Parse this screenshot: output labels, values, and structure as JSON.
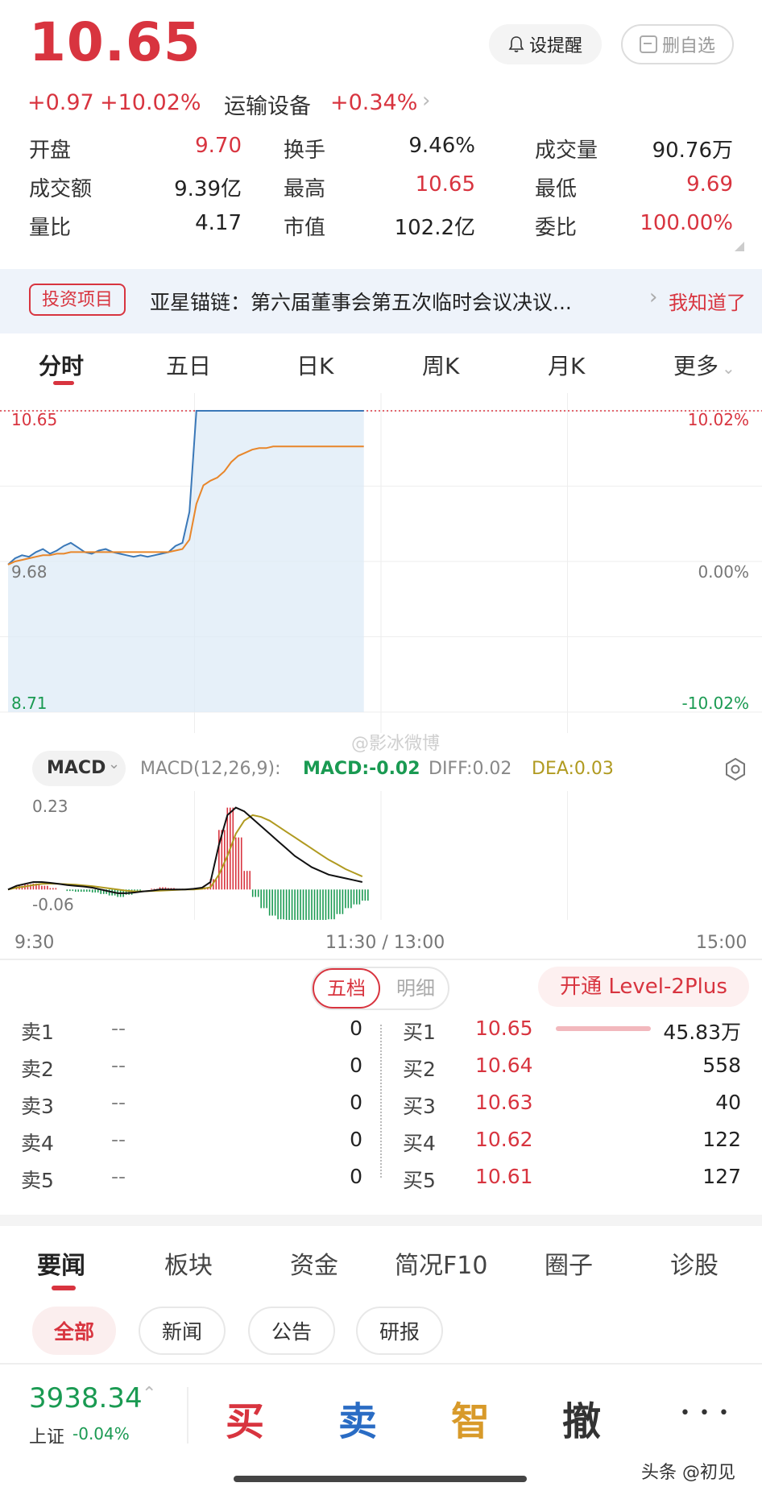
{
  "header": {
    "price": "10.65",
    "change": "+0.97",
    "change_pct": "+10.02%",
    "sector_name": "运输设备",
    "sector_pct": "+0.34%",
    "alert_label": "设提醒",
    "remove_label": "删自选"
  },
  "stats": [
    {
      "label": "开盘",
      "value": "9.70",
      "color": "red"
    },
    {
      "label": "换手",
      "value": "9.46%",
      "color": "black"
    },
    {
      "label": "成交量",
      "value": "90.76万",
      "color": "black"
    },
    {
      "label": "成交额",
      "value": "9.39亿",
      "color": "black"
    },
    {
      "label": "最高",
      "value": "10.65",
      "color": "red"
    },
    {
      "label": "最低",
      "value": "9.69",
      "color": "red"
    },
    {
      "label": "量比",
      "value": "4.17",
      "color": "black"
    },
    {
      "label": "市值",
      "value": "102.2亿",
      "color": "black"
    },
    {
      "label": "委比",
      "value": "100.00%",
      "color": "red"
    }
  ],
  "banner": {
    "tag": "投资项目",
    "text": "亚星锚链：第六届董事会第五次临时会议决议...",
    "action": "我知道了"
  },
  "chart_tabs": [
    "分时",
    "五日",
    "日K",
    "周K",
    "月K",
    "更多"
  ],
  "chart_data": [
    {
      "type": "line",
      "y_left_ticks": [
        "10.65",
        "9.68",
        "8.71"
      ],
      "y_right_ticks": [
        "10.02%",
        "0.00%",
        "-10.02%"
      ],
      "x_ticks": [
        "9:30",
        "11:30 / 13:00",
        "15:00"
      ],
      "ylim": [
        8.71,
        10.65
      ],
      "series": [
        {
          "values": [
            9.66,
            9.7,
            9.72,
            9.71,
            9.74,
            9.76,
            9.73,
            9.75,
            9.78,
            9.8,
            9.77,
            9.74,
            9.73,
            9.75,
            9.76,
            9.74,
            9.73,
            9.72,
            9.71,
            9.72,
            9.71,
            9.72,
            9.73,
            9.74,
            9.78,
            9.8,
            10.0,
            10.65,
            10.65,
            10.65,
            10.65,
            10.65,
            10.65,
            10.65,
            10.65,
            10.65,
            10.65,
            10.65,
            10.65,
            10.65,
            10.65,
            10.65,
            10.65,
            10.65,
            10.65,
            10.65,
            10.65,
            10.65,
            10.65,
            10.65,
            10.65,
            10.65
          ]
        },
        {
          "values": [
            9.66,
            9.68,
            9.69,
            9.7,
            9.71,
            9.72,
            9.72,
            9.73,
            9.73,
            9.74,
            9.74,
            9.74,
            9.74,
            9.74,
            9.74,
            9.74,
            9.74,
            9.74,
            9.74,
            9.74,
            9.74,
            9.74,
            9.74,
            9.74,
            9.75,
            9.76,
            9.82,
            10.05,
            10.17,
            10.2,
            10.22,
            10.26,
            10.32,
            10.36,
            10.38,
            10.4,
            10.41,
            10.41,
            10.42,
            10.42,
            10.42,
            10.42,
            10.42,
            10.42,
            10.42,
            10.42,
            10.42,
            10.42,
            10.42,
            10.42,
            10.42,
            10.42
          ]
        }
      ]
    },
    {
      "type": "macd",
      "indicator_label": "MACD",
      "params": "MACD(12,26,9):",
      "macd_text": "MACD:-0.02",
      "diff_text": "DIFF:0.02",
      "dea_text": "DEA:0.03",
      "y_ticks": [
        "0.23",
        "-0.06"
      ],
      "ylim": [
        -0.06,
        0.23
      ],
      "diff": [
        0.0,
        0.01,
        0.015,
        0.02,
        0.02,
        0.018,
        0.015,
        0.012,
        0.01,
        0.008,
        0.005,
        0.0,
        -0.005,
        -0.01,
        -0.01,
        -0.008,
        -0.005,
        -0.003,
        0.0,
        0.0,
        0.0,
        0.0,
        0.002,
        0.005,
        0.02,
        0.12,
        0.2,
        0.22,
        0.21,
        0.19,
        0.17,
        0.15,
        0.13,
        0.11,
        0.09,
        0.075,
        0.06,
        0.05,
        0.04,
        0.035,
        0.03,
        0.025,
        0.02
      ],
      "dea": [
        0.0,
        0.005,
        0.008,
        0.012,
        0.015,
        0.016,
        0.015,
        0.014,
        0.013,
        0.011,
        0.009,
        0.006,
        0.003,
        0.0,
        -0.003,
        -0.005,
        -0.005,
        -0.004,
        -0.003,
        -0.002,
        -0.001,
        0.0,
        0.0,
        0.002,
        0.006,
        0.04,
        0.09,
        0.15,
        0.185,
        0.2,
        0.195,
        0.185,
        0.17,
        0.155,
        0.14,
        0.125,
        0.11,
        0.095,
        0.08,
        0.068,
        0.055,
        0.045,
        0.035
      ]
    }
  ],
  "watermark": "@影冰微博",
  "orderbook": {
    "tab_active": "五档",
    "tab_other": "明细",
    "level2": "开通 Level-2Plus",
    "sell": [
      {
        "label": "卖1",
        "price": "--",
        "vol": "0"
      },
      {
        "label": "卖2",
        "price": "--",
        "vol": "0"
      },
      {
        "label": "卖3",
        "price": "--",
        "vol": "0"
      },
      {
        "label": "卖4",
        "price": "--",
        "vol": "0"
      },
      {
        "label": "卖5",
        "price": "--",
        "vol": "0"
      }
    ],
    "buy": [
      {
        "label": "买1",
        "price": "10.65",
        "vol": "45.83万"
      },
      {
        "label": "买2",
        "price": "10.64",
        "vol": "558"
      },
      {
        "label": "买3",
        "price": "10.63",
        "vol": "40"
      },
      {
        "label": "买4",
        "price": "10.62",
        "vol": "122"
      },
      {
        "label": "买5",
        "price": "10.61",
        "vol": "127"
      }
    ]
  },
  "news_tabs": [
    "要闻",
    "板块",
    "资金",
    "简况F10",
    "圈子",
    "诊股"
  ],
  "news_chips": [
    "全部",
    "新闻",
    "公告",
    "研报"
  ],
  "bottom": {
    "index_value": "3938.34",
    "index_name": "上证",
    "index_pct": "-0.04%",
    "buy": "买",
    "sell": "卖",
    "smart": "智",
    "cancel": "撤",
    "more": "• • •",
    "credit": "头条 @初见"
  },
  "colors": {
    "up": "#d8343f",
    "down": "#1a9a52",
    "price_line": "#3a78b8",
    "avg_line": "#e8862a",
    "dea_line": "#b09a20"
  }
}
